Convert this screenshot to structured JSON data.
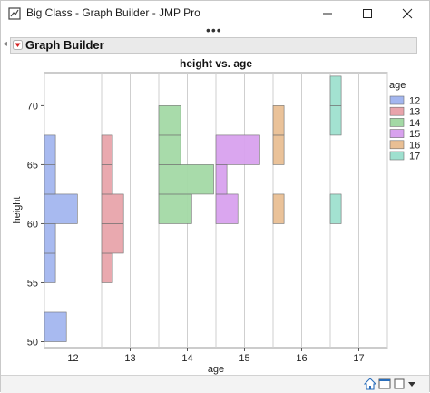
{
  "window": {
    "title": "Big Class - Graph Builder - JMP Pro",
    "minimize_icon": "minimize-icon",
    "maximize_icon": "maximize-icon",
    "close_icon": "close-icon",
    "more_label": "•••"
  },
  "outline": {
    "title": "Graph Builder",
    "disclosure_icon": "red-triangle-menu-icon"
  },
  "chart_data": {
    "type": "heatmap",
    "title": "height vs. age",
    "xlabel": "age",
    "ylabel": "height",
    "x_ticks": [
      "12",
      "13",
      "14",
      "15",
      "16",
      "17"
    ],
    "y_ticks": [
      50,
      55,
      60,
      65,
      70
    ],
    "ylim": [
      49.5,
      72.8
    ],
    "grid": true,
    "legend_title": "age",
    "legend_position": "right",
    "series": [
      {
        "name": "12",
        "color": "#a3b6ef",
        "bins": [
          {
            "y0": 50,
            "y1": 52.5,
            "count": 2
          },
          {
            "y0": 52.5,
            "y1": 55,
            "count": 0
          },
          {
            "y0": 55,
            "y1": 57.5,
            "count": 1
          },
          {
            "y0": 57.5,
            "y1": 60,
            "count": 1
          },
          {
            "y0": 60,
            "y1": 62.5,
            "count": 3
          },
          {
            "y0": 62.5,
            "y1": 65,
            "count": 1
          },
          {
            "y0": 65,
            "y1": 67.5,
            "count": 1
          }
        ]
      },
      {
        "name": "13",
        "color": "#e8a4ab",
        "bins": [
          {
            "y0": 55,
            "y1": 57.5,
            "count": 1
          },
          {
            "y0": 57.5,
            "y1": 60,
            "count": 2
          },
          {
            "y0": 60,
            "y1": 62.5,
            "count": 2
          },
          {
            "y0": 62.5,
            "y1": 65,
            "count": 1
          },
          {
            "y0": 65,
            "y1": 67.5,
            "count": 1
          }
        ]
      },
      {
        "name": "14",
        "color": "#a3d9a5",
        "bins": [
          {
            "y0": 60,
            "y1": 62.5,
            "count": 3
          },
          {
            "y0": 62.5,
            "y1": 65,
            "count": 5
          },
          {
            "y0": 65,
            "y1": 67.5,
            "count": 2
          },
          {
            "y0": 67.5,
            "y1": 70,
            "count": 2
          }
        ]
      },
      {
        "name": "15",
        "color": "#d8a1ee",
        "bins": [
          {
            "y0": 60,
            "y1": 62.5,
            "count": 2
          },
          {
            "y0": 62.5,
            "y1": 65,
            "count": 1
          },
          {
            "y0": 65,
            "y1": 67.5,
            "count": 4
          }
        ]
      },
      {
        "name": "16",
        "color": "#e9bf94",
        "bins": [
          {
            "y0": 60,
            "y1": 62.5,
            "count": 1
          },
          {
            "y0": 65,
            "y1": 67.5,
            "count": 1
          },
          {
            "y0": 67.5,
            "y1": 70,
            "count": 1
          }
        ]
      },
      {
        "name": "17",
        "color": "#9ee0cf",
        "bins": [
          {
            "y0": 60,
            "y1": 62.5,
            "count": 1
          },
          {
            "y0": 67.5,
            "y1": 70,
            "count": 1
          },
          {
            "y0": 70,
            "y1": 72.5,
            "count": 1
          }
        ]
      }
    ]
  },
  "statusbar": {
    "icons": [
      "home-icon",
      "window-icon",
      "dropdown-arrow-icon"
    ]
  }
}
